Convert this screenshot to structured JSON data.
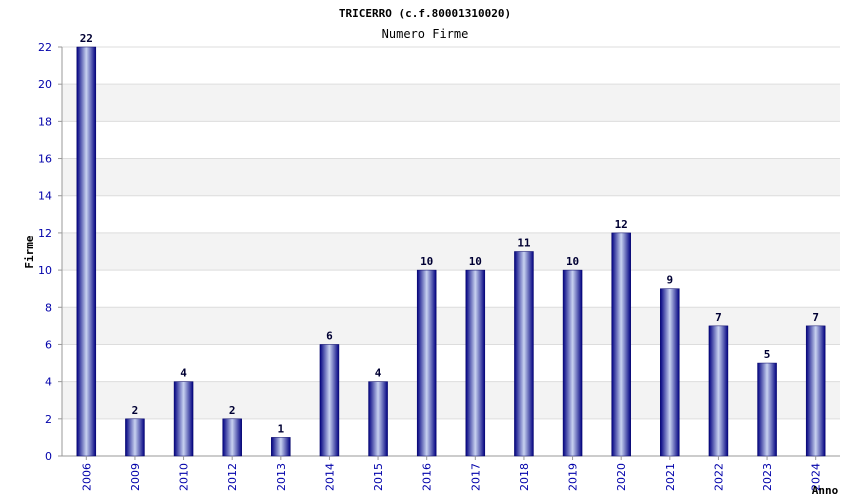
{
  "chart_data": {
    "type": "bar",
    "title": "TRICERRO (c.f.80001310020)",
    "subtitle": "Numero Firme",
    "ylabel": "Firme",
    "xlabel": "Anno",
    "categories": [
      "2006",
      "2009",
      "2010",
      "2012",
      "2013",
      "2014",
      "2015",
      "2016",
      "2017",
      "2018",
      "2019",
      "2020",
      "2021",
      "2022",
      "2023",
      "2024"
    ],
    "values": [
      22,
      2,
      4,
      2,
      1,
      6,
      4,
      10,
      10,
      11,
      10,
      12,
      9,
      7,
      5,
      7
    ],
    "ylim": [
      0,
      22
    ],
    "yticks": [
      0,
      2,
      4,
      6,
      8,
      10,
      12,
      14,
      16,
      18,
      20,
      22
    ],
    "grid": true,
    "colors": {
      "bar_dark": "#000080",
      "bar_light": "#c8d2f0",
      "band": "#f3f3f3",
      "tick_text": "#0000aa"
    }
  }
}
